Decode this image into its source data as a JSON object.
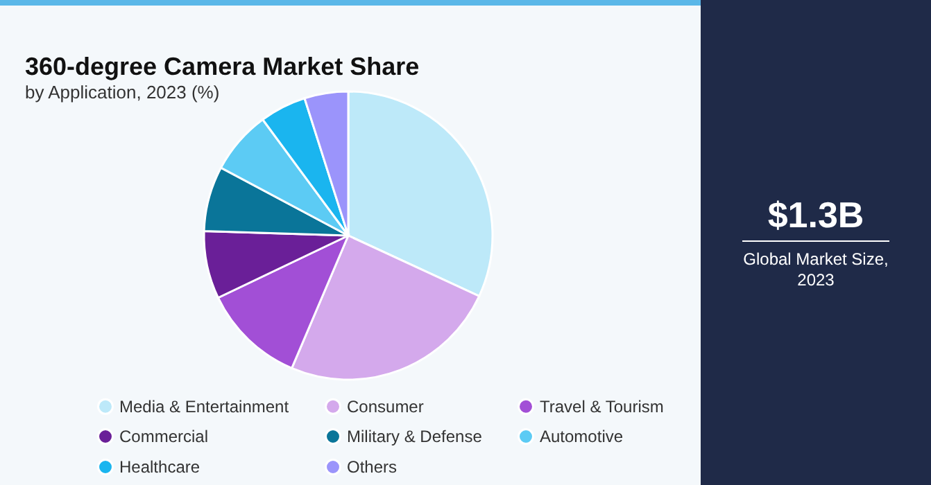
{
  "chart_data": {
    "type": "pie",
    "title": "360-degree Camera Market Share",
    "subtitle": "by Application, 2023 (%)",
    "categories": [
      "Media & Entertainment",
      "Consumer",
      "Travel & Tourism",
      "Commercial",
      "Military & Defense",
      "Automotive",
      "Healthcare",
      "Others"
    ],
    "values": [
      31.9,
      24.5,
      11.5,
      7.6,
      7.3,
      7.1,
      5.2,
      4.9
    ],
    "colors": [
      "#bde9f9",
      "#d4a9ec",
      "#a24fd6",
      "#6a1f98",
      "#0a7599",
      "#5ccbf4",
      "#1ab5ef",
      "#9b94fb"
    ],
    "legend": "bottom",
    "annotations": [
      "$1.3B",
      "Global Market Size, 2023"
    ]
  }
}
